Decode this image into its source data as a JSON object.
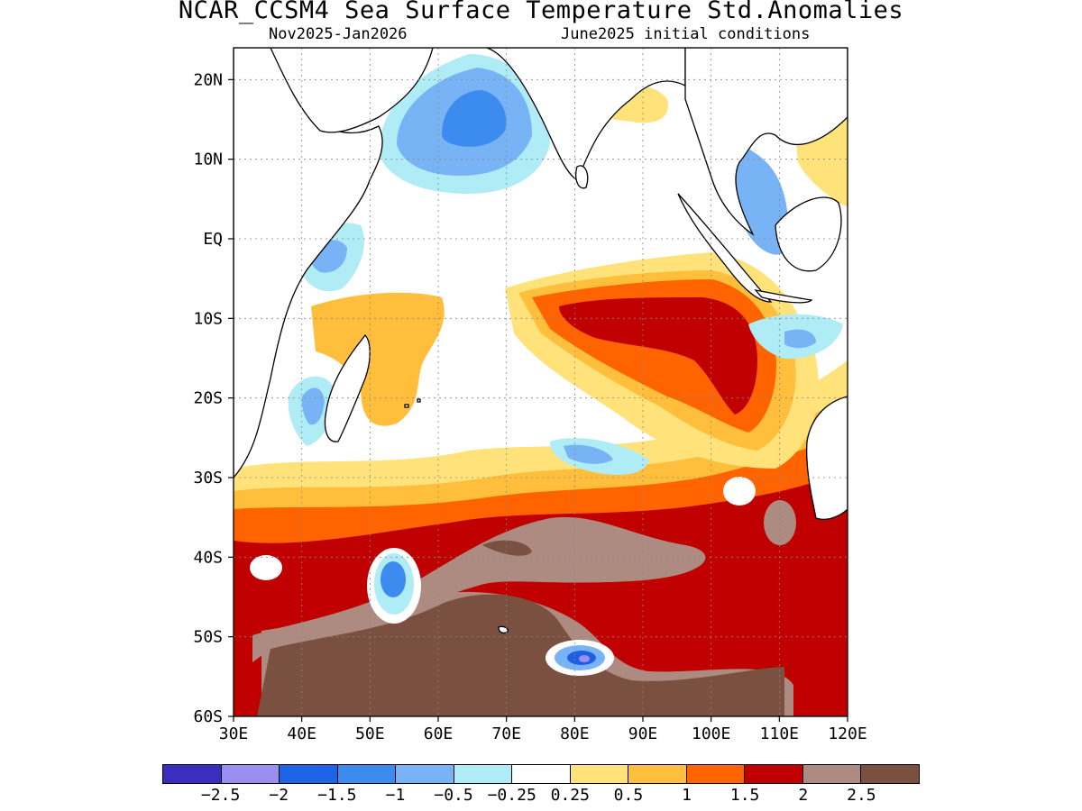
{
  "title": "NCAR_CCSM4 Sea Surface Temperature Std.Anomalies",
  "subtitle_left": "Nov2025-Jan2026",
  "subtitle_right": "June2025 initial conditions",
  "map": {
    "lon_range": [
      30,
      120
    ],
    "lat_range": [
      -60,
      24
    ],
    "lon_ticks": [
      30,
      40,
      50,
      60,
      70,
      80,
      90,
      100,
      110,
      120
    ],
    "lat_ticks": [
      20,
      10,
      0,
      -10,
      -20,
      -30,
      -40,
      -50,
      -60
    ],
    "lon_labels": [
      "30E",
      "40E",
      "50E",
      "60E",
      "70E",
      "80E",
      "90E",
      "100E",
      "110E",
      "120E"
    ],
    "lat_labels": [
      "20N",
      "10N",
      "EQ",
      "10S",
      "20S",
      "30S",
      "40S",
      "50S",
      "60S"
    ],
    "grid": true,
    "regions": [
      {
        "name": "southern-ocean-high-anomaly",
        "category": "2.5 to 3",
        "color": "#7a5040"
      },
      {
        "name": "southern-band",
        "category": "2 to 2.5",
        "color": "#ae8b80"
      },
      {
        "name": "eastern-warm-tongue",
        "category": "1.5 to 2",
        "color": "#c00000"
      },
      {
        "name": "arabian-sea-cool",
        "category": "-1 to -0.5",
        "color": "#7db5f5"
      },
      {
        "name": "kerguelen-cold-spot",
        "category": "-2 to -1.5",
        "color": "#2060e0"
      }
    ]
  },
  "colorbar": {
    "colors": [
      "#3a2ec0",
      "#9a8ef0",
      "#1e64e6",
      "#3c8cf0",
      "#78b4f5",
      "#b0ecf5",
      "#ffffff",
      "#ffe37a",
      "#ffbe3c",
      "#ff6400",
      "#c00000",
      "#ae8b80",
      "#7a5040"
    ],
    "labels": [
      "-2.5",
      "-2",
      "-1.5",
      "-1",
      "-0.5",
      "-0.25",
      "0.25",
      "0.5",
      "1",
      "1.5",
      "2",
      "2.5"
    ]
  }
}
